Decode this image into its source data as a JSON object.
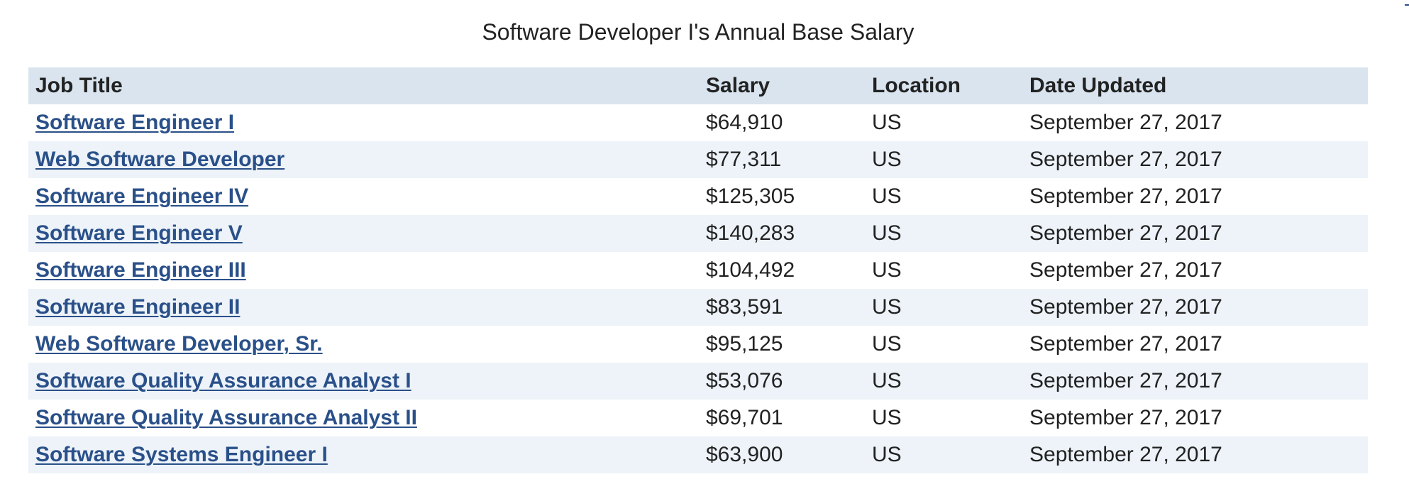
{
  "table": {
    "caption": "Software Developer I's Annual Base Salary",
    "headers": [
      "Job Title",
      "Salary",
      "Location",
      "Date Updated"
    ],
    "rows": [
      [
        "Software Engineer I",
        "$64,910",
        "US",
        "September 27, 2017"
      ],
      [
        "Web Software Developer",
        "$77,311",
        "US",
        "September 27, 2017"
      ],
      [
        "Software Engineer IV",
        "$125,305",
        "US",
        "September 27, 2017"
      ],
      [
        "Software Engineer V",
        "$140,283",
        "US",
        "September 27, 2017"
      ],
      [
        "Software Engineer III",
        "$104,492",
        "US",
        "September 27, 2017"
      ],
      [
        "Software Engineer II",
        "$83,591",
        "US",
        "September 27, 2017"
      ],
      [
        "Web Software Developer, Sr.",
        "$95,125",
        "US",
        "September 27, 2017"
      ],
      [
        "Software Quality Assurance Analyst I",
        "$53,076",
        "US",
        "September 27, 2017"
      ],
      [
        "Software Quality Assurance Analyst II",
        "$69,701",
        "US",
        "September 27, 2017"
      ],
      [
        "Software Systems Engineer I",
        "$63,900",
        "US",
        "September 27, 2017"
      ]
    ]
  },
  "colors": {
    "link": "#2a5089",
    "header_bg": "#d9e4ef",
    "stripe_bg": "#edf3f9",
    "text": "#222222"
  }
}
